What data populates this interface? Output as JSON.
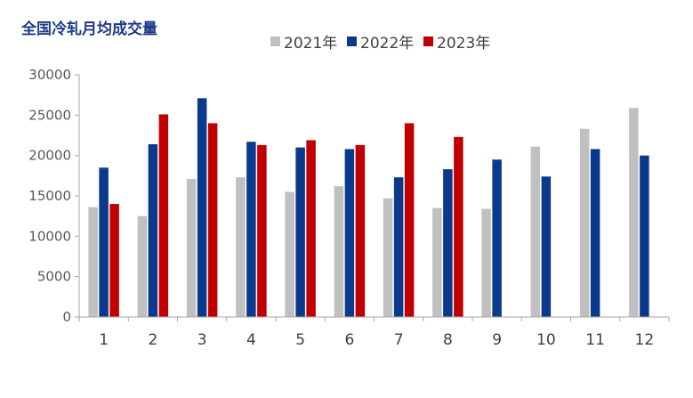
{
  "title": "全国冷轧月均成交量",
  "colors": {
    "2021年": "#c0c0c0",
    "2022年": "#0b3a8c",
    "2023年": "#c00000",
    "axis": "#a6a6a6"
  },
  "chart_data": {
    "type": "bar",
    "title": "全国冷轧月均成交量",
    "xlabel": "",
    "ylabel": "",
    "categories": [
      "1",
      "2",
      "3",
      "4",
      "5",
      "6",
      "7",
      "8",
      "9",
      "10",
      "11",
      "12"
    ],
    "series": [
      {
        "name": "2021年",
        "values": [
          13600,
          12500,
          17100,
          17300,
          15500,
          16200,
          14700,
          13500,
          13400,
          21100,
          23300,
          25900
        ]
      },
      {
        "name": "2022年",
        "values": [
          18500,
          21400,
          27100,
          21700,
          21000,
          20800,
          17300,
          18300,
          19500,
          17400,
          20800,
          20000
        ]
      },
      {
        "name": "2023年",
        "values": [
          14000,
          25100,
          24000,
          21300,
          21900,
          21300,
          24000,
          22300,
          null,
          null,
          null,
          null
        ]
      }
    ],
    "ylim": [
      0,
      30000
    ],
    "yticks": [
      "0",
      "5000",
      "10000",
      "15000",
      "20000",
      "25000",
      "30000"
    ],
    "grid": false,
    "legend_position": "top"
  }
}
